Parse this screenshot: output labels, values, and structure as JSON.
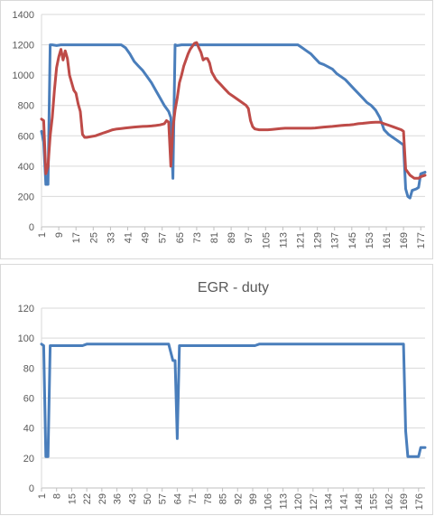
{
  "chart_data": [
    {
      "type": "line",
      "title": "",
      "xlabel": "",
      "ylabel": "",
      "ylim": [
        0,
        1400
      ],
      "yticks": [
        "0",
        "200",
        "400",
        "600",
        "800",
        "1000",
        "1200",
        "1400"
      ],
      "xlim": [
        1,
        179
      ],
      "xticks": [
        "1",
        "9",
        "17",
        "25",
        "33",
        "41",
        "49",
        "57",
        "65",
        "73",
        "81",
        "89",
        "97",
        "105",
        "113",
        "121",
        "129",
        "137",
        "145",
        "153",
        "161",
        "169",
        "177"
      ],
      "grid": true,
      "legend": "none",
      "series": [
        {
          "color": "#4a7ebb",
          "points": [
            [
              1,
              630
            ],
            [
              2,
              560
            ],
            [
              3,
              280
            ],
            [
              4,
              280
            ],
            [
              5,
              1200
            ],
            [
              6,
              1200
            ],
            [
              8,
              1195
            ],
            [
              10,
              1200
            ],
            [
              20,
              1200
            ],
            [
              30,
              1200
            ],
            [
              38,
              1200
            ],
            [
              40,
              1180
            ],
            [
              42,
              1140
            ],
            [
              44,
              1090
            ],
            [
              46,
              1060
            ],
            [
              48,
              1030
            ],
            [
              50,
              990
            ],
            [
              52,
              950
            ],
            [
              54,
              900
            ],
            [
              56,
              850
            ],
            [
              58,
              800
            ],
            [
              60,
              760
            ],
            [
              61,
              720
            ],
            [
              62,
              320
            ],
            [
              63,
              1200
            ],
            [
              64,
              1195
            ],
            [
              66,
              1200
            ],
            [
              80,
              1200
            ],
            [
              100,
              1200
            ],
            [
              120,
              1200
            ],
            [
              122,
              1180
            ],
            [
              124,
              1160
            ],
            [
              126,
              1140
            ],
            [
              128,
              1110
            ],
            [
              130,
              1080
            ],
            [
              132,
              1070
            ],
            [
              134,
              1055
            ],
            [
              136,
              1040
            ],
            [
              138,
              1010
            ],
            [
              140,
              990
            ],
            [
              142,
              970
            ],
            [
              144,
              940
            ],
            [
              146,
              910
            ],
            [
              148,
              880
            ],
            [
              150,
              850
            ],
            [
              152,
              820
            ],
            [
              154,
              800
            ],
            [
              156,
              770
            ],
            [
              158,
              720
            ],
            [
              160,
              640
            ],
            [
              162,
              610
            ],
            [
              164,
              590
            ],
            [
              166,
              570
            ],
            [
              168,
              550
            ],
            [
              169,
              540
            ],
            [
              170,
              250
            ],
            [
              171,
              200
            ],
            [
              172,
              190
            ],
            [
              173,
              240
            ],
            [
              175,
              250
            ],
            [
              176,
              260
            ],
            [
              177,
              350
            ],
            [
              179,
              360
            ]
          ]
        },
        {
          "color": "#be4b48",
          "points": [
            [
              1,
              710
            ],
            [
              2,
              700
            ],
            [
              3,
              350
            ],
            [
              4,
              400
            ],
            [
              5,
              600
            ],
            [
              6,
              720
            ],
            [
              7,
              900
            ],
            [
              8,
              1050
            ],
            [
              9,
              1120
            ],
            [
              10,
              1170
            ],
            [
              11,
              1100
            ],
            [
              12,
              1160
            ],
            [
              13,
              1110
            ],
            [
              14,
              1000
            ],
            [
              15,
              950
            ],
            [
              16,
              900
            ],
            [
              17,
              880
            ],
            [
              18,
              810
            ],
            [
              19,
              760
            ],
            [
              20,
              610
            ],
            [
              21,
              590
            ],
            [
              22,
              590
            ],
            [
              24,
              595
            ],
            [
              26,
              600
            ],
            [
              28,
              610
            ],
            [
              30,
              620
            ],
            [
              32,
              630
            ],
            [
              34,
              640
            ],
            [
              36,
              645
            ],
            [
              38,
              648
            ],
            [
              40,
              652
            ],
            [
              42,
              655
            ],
            [
              44,
              658
            ],
            [
              46,
              660
            ],
            [
              48,
              662
            ],
            [
              50,
              663
            ],
            [
              52,
              665
            ],
            [
              54,
              668
            ],
            [
              56,
              672
            ],
            [
              58,
              680
            ],
            [
              59,
              700
            ],
            [
              60,
              690
            ],
            [
              61,
              400
            ],
            [
              62,
              650
            ],
            [
              63,
              770
            ],
            [
              64,
              850
            ],
            [
              65,
              950
            ],
            [
              66,
              1000
            ],
            [
              67,
              1060
            ],
            [
              68,
              1100
            ],
            [
              69,
              1140
            ],
            [
              70,
              1170
            ],
            [
              71,
              1190
            ],
            [
              72,
              1210
            ],
            [
              73,
              1215
            ],
            [
              74,
              1180
            ],
            [
              75,
              1150
            ],
            [
              76,
              1100
            ],
            [
              77,
              1110
            ],
            [
              78,
              1110
            ],
            [
              79,
              1080
            ],
            [
              80,
              1020
            ],
            [
              82,
              970
            ],
            [
              84,
              940
            ],
            [
              86,
              910
            ],
            [
              88,
              880
            ],
            [
              90,
              860
            ],
            [
              92,
              840
            ],
            [
              94,
              820
            ],
            [
              96,
              800
            ],
            [
              97,
              780
            ],
            [
              98,
              700
            ],
            [
              99,
              660
            ],
            [
              100,
              645
            ],
            [
              102,
              640
            ],
            [
              104,
              640
            ],
            [
              106,
              640
            ],
            [
              108,
              642
            ],
            [
              110,
              645
            ],
            [
              112,
              648
            ],
            [
              114,
              650
            ],
            [
              116,
              650
            ],
            [
              118,
              650
            ],
            [
              120,
              650
            ],
            [
              122,
              650
            ],
            [
              124,
              650
            ],
            [
              126,
              650
            ],
            [
              128,
              652
            ],
            [
              130,
              655
            ],
            [
              132,
              658
            ],
            [
              134,
              660
            ],
            [
              136,
              662
            ],
            [
              138,
              665
            ],
            [
              140,
              668
            ],
            [
              142,
              670
            ],
            [
              144,
              672
            ],
            [
              146,
              675
            ],
            [
              148,
              680
            ],
            [
              150,
              682
            ],
            [
              152,
              685
            ],
            [
              154,
              688
            ],
            [
              156,
              690
            ],
            [
              158,
              690
            ],
            [
              160,
              680
            ],
            [
              162,
              670
            ],
            [
              164,
              660
            ],
            [
              166,
              650
            ],
            [
              168,
              640
            ],
            [
              169,
              630
            ],
            [
              170,
              380
            ],
            [
              172,
              340
            ],
            [
              174,
              320
            ],
            [
              176,
              320
            ],
            [
              177,
              330
            ],
            [
              179,
              340
            ]
          ]
        }
      ]
    },
    {
      "type": "line",
      "title": "EGR - duty",
      "xlabel": "",
      "ylabel": "",
      "ylim": [
        0,
        120
      ],
      "yticks": [
        "0",
        "20",
        "40",
        "60",
        "80",
        "100",
        "120"
      ],
      "xlim": [
        1,
        179
      ],
      "xticks": [
        "1",
        "8",
        "15",
        "22",
        "29",
        "36",
        "43",
        "50",
        "57",
        "64",
        "71",
        "78",
        "85",
        "92",
        "99",
        "106",
        "113",
        "120",
        "127",
        "134",
        "141",
        "148",
        "155",
        "162",
        "169",
        "176"
      ],
      "grid": true,
      "legend": "none",
      "series": [
        {
          "color": "#4a7ebb",
          "points": [
            [
              1,
              96
            ],
            [
              2,
              95
            ],
            [
              3,
              21
            ],
            [
              4,
              21
            ],
            [
              5,
              95
            ],
            [
              10,
              95
            ],
            [
              20,
              95
            ],
            [
              22,
              96
            ],
            [
              40,
              96
            ],
            [
              60,
              96
            ],
            [
              62,
              85
            ],
            [
              63,
              85
            ],
            [
              64,
              33
            ],
            [
              65,
              95
            ],
            [
              80,
              95
            ],
            [
              100,
              95
            ],
            [
              102,
              96
            ],
            [
              130,
              96
            ],
            [
              160,
              96
            ],
            [
              169,
              96
            ],
            [
              170,
              38
            ],
            [
              171,
              21
            ],
            [
              173,
              21
            ],
            [
              176,
              21
            ],
            [
              177,
              27
            ],
            [
              179,
              27
            ]
          ]
        }
      ]
    }
  ]
}
